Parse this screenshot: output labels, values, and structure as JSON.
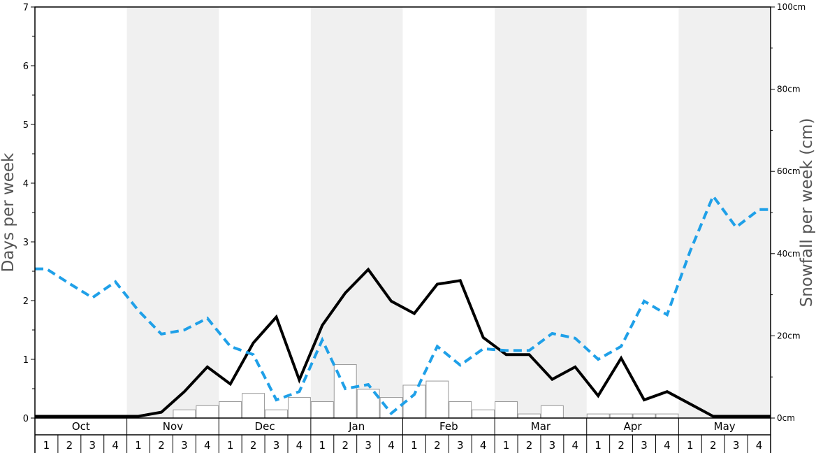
{
  "chart_data": {
    "type": "bar+line",
    "left_axis": {
      "label": "Days per week",
      "ylim": [
        0,
        7
      ],
      "ticks": [
        0,
        1,
        2,
        3,
        4,
        5,
        6,
        7
      ]
    },
    "right_axis": {
      "label": "Snowfall per week (cm)",
      "ylim": [
        0,
        100
      ],
      "ticks": [
        "0cm",
        "20cm",
        "40cm",
        "60cm",
        "80cm",
        "100cm"
      ],
      "tick_values": [
        0,
        20,
        40,
        60,
        80,
        100
      ]
    },
    "months": [
      "Oct",
      "Nov",
      "Dec",
      "Jan",
      "Feb",
      "Mar",
      "Apr",
      "May"
    ],
    "weeks": [
      "1",
      "2",
      "3",
      "4"
    ],
    "shaded_months": [
      "Nov",
      "Jan",
      "Mar",
      "May"
    ],
    "series": [
      {
        "kind": "bars",
        "axis": "right",
        "color": "#ffffff",
        "stroke": "#999999",
        "values": [
          0,
          0,
          0,
          0,
          0,
          0,
          2,
          3,
          4,
          6,
          2,
          5,
          4,
          13,
          7,
          5,
          8,
          9,
          4,
          2,
          4,
          1,
          3,
          0,
          1,
          1,
          1,
          1,
          0,
          0,
          0,
          0
        ]
      },
      {
        "kind": "line",
        "axis": "left",
        "color": "#000000",
        "style": "solid",
        "values": [
          0.03,
          0.03,
          0.03,
          0.03,
          0.03,
          0.1,
          0.45,
          0.87,
          0.58,
          1.28,
          1.72,
          0.65,
          1.58,
          2.13,
          2.53,
          1.99,
          1.78,
          2.28,
          2.34,
          1.37,
          1.08,
          1.08,
          0.66,
          0.87,
          0.38,
          1.02,
          0.31,
          0.45,
          0.24,
          0.03,
          0.03,
          0.03
        ]
      },
      {
        "kind": "line",
        "axis": "left",
        "color": "#1fa0e8",
        "style": "dashed",
        "values": [
          2.54,
          2.29,
          2.05,
          2.32,
          1.83,
          1.43,
          1.5,
          1.7,
          1.22,
          1.08,
          0.31,
          0.45,
          1.33,
          0.5,
          0.57,
          0.08,
          0.4,
          1.22,
          0.9,
          1.18,
          1.15,
          1.15,
          1.44,
          1.36,
          1.0,
          1.22,
          1.99,
          1.76,
          2.84,
          3.78,
          3.25,
          3.55
        ]
      }
    ]
  }
}
